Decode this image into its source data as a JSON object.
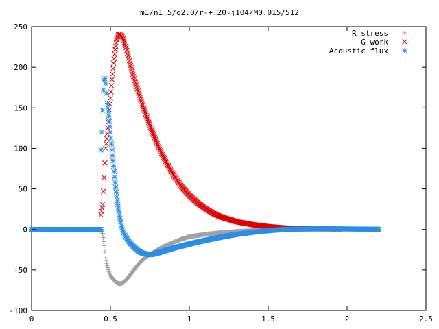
{
  "chart_data": {
    "type": "scatter",
    "title": "m1/n1.5/q2.0/r-+.20-j104/M0.015/512",
    "xlabel": "",
    "ylabel": "",
    "xlim": [
      0,
      2.5
    ],
    "ylim": [
      -100,
      250
    ],
    "x_ticks": [
      0,
      0.5,
      1,
      1.5,
      2,
      2.5
    ],
    "x_tick_labels": [
      "0",
      "0.5",
      "1",
      "1.5",
      "2",
      "2.5"
    ],
    "y_ticks": [
      -100,
      -50,
      0,
      50,
      100,
      150,
      200,
      250
    ],
    "y_tick_labels": [
      "-100",
      "-50",
      "0",
      "50",
      "100",
      "150",
      "200",
      "250"
    ],
    "grid": false,
    "legend_position": "top-right",
    "series": [
      {
        "name": "R stress",
        "marker": "plus",
        "color": "#a0a0a0",
        "points": [
          [
            0.0,
            0
          ],
          [
            0.1,
            0
          ],
          [
            0.2,
            0
          ],
          [
            0.3,
            0
          ],
          [
            0.4,
            0
          ],
          [
            0.44,
            0
          ],
          [
            0.45,
            -5
          ],
          [
            0.46,
            -20
          ],
          [
            0.47,
            -35
          ],
          [
            0.48,
            -45
          ],
          [
            0.49,
            -52
          ],
          [
            0.5,
            -57
          ],
          [
            0.52,
            -62
          ],
          [
            0.54,
            -66
          ],
          [
            0.56,
            -67
          ],
          [
            0.58,
            -66
          ],
          [
            0.6,
            -62
          ],
          [
            0.63,
            -55
          ],
          [
            0.66,
            -47
          ],
          [
            0.7,
            -38
          ],
          [
            0.75,
            -31
          ],
          [
            0.8,
            -25
          ],
          [
            0.85,
            -20
          ],
          [
            0.9,
            -16
          ],
          [
            0.95,
            -12
          ],
          [
            1.0,
            -9
          ],
          [
            1.1,
            -6
          ],
          [
            1.2,
            -4
          ],
          [
            1.3,
            -2.5
          ],
          [
            1.4,
            -1.5
          ],
          [
            1.5,
            -0.5
          ],
          [
            1.6,
            0
          ],
          [
            1.7,
            0.3
          ],
          [
            1.8,
            0.4
          ],
          [
            1.9,
            0.5
          ],
          [
            1.95,
            0.5
          ]
        ]
      },
      {
        "name": "G work",
        "marker": "cross",
        "color": "#e00000",
        "points": [
          [
            0.44,
            18
          ],
          [
            0.45,
            31
          ],
          [
            0.455,
            47
          ],
          [
            0.46,
            64
          ],
          [
            0.465,
            82
          ],
          [
            0.47,
            100
          ],
          [
            0.48,
            118
          ],
          [
            0.49,
            140
          ],
          [
            0.5,
            162
          ],
          [
            0.51,
            185
          ],
          [
            0.52,
            205
          ],
          [
            0.53,
            222
          ],
          [
            0.54,
            234
          ],
          [
            0.55,
            240
          ],
          [
            0.56,
            241
          ],
          [
            0.57,
            239
          ],
          [
            0.58,
            235
          ],
          [
            0.6,
            224
          ],
          [
            0.62,
            208
          ],
          [
            0.65,
            186
          ],
          [
            0.7,
            155
          ],
          [
            0.75,
            128
          ],
          [
            0.8,
            104
          ],
          [
            0.85,
            84
          ],
          [
            0.9,
            67
          ],
          [
            0.95,
            53
          ],
          [
            1.0,
            42
          ],
          [
            1.05,
            33
          ],
          [
            1.1,
            26
          ],
          [
            1.15,
            20
          ],
          [
            1.2,
            15.5
          ],
          [
            1.3,
            9.5
          ],
          [
            1.4,
            6
          ],
          [
            1.5,
            3.5
          ],
          [
            1.6,
            2
          ],
          [
            1.7,
            1.2
          ],
          [
            1.8,
            0.8
          ],
          [
            1.9,
            0.6
          ],
          [
            1.95,
            0.5
          ]
        ]
      },
      {
        "name": "Acoustic flux",
        "marker": "star",
        "color": "#2b8ee8",
        "points": [
          [
            0.0,
            0
          ],
          [
            0.1,
            0
          ],
          [
            0.2,
            0
          ],
          [
            0.3,
            0
          ],
          [
            0.4,
            0
          ],
          [
            0.44,
            0
          ],
          [
            0.44,
            98
          ],
          [
            0.445,
            120
          ],
          [
            0.45,
            147
          ],
          [
            0.455,
            172
          ],
          [
            0.46,
            184
          ],
          [
            0.465,
            186
          ],
          [
            0.47,
            180
          ],
          [
            0.475,
            168
          ],
          [
            0.48,
            155
          ],
          [
            0.49,
            140
          ],
          [
            0.5,
            120
          ],
          [
            0.51,
            98
          ],
          [
            0.52,
            78
          ],
          [
            0.53,
            58
          ],
          [
            0.54,
            40
          ],
          [
            0.55,
            26
          ],
          [
            0.56,
            14
          ],
          [
            0.57,
            5
          ],
          [
            0.58,
            -3
          ],
          [
            0.6,
            -10
          ],
          [
            0.62,
            -16
          ],
          [
            0.65,
            -22
          ],
          [
            0.68,
            -27
          ],
          [
            0.7,
            -29
          ],
          [
            0.72,
            -30
          ],
          [
            0.74,
            -31
          ],
          [
            0.76,
            -31
          ],
          [
            0.8,
            -29
          ],
          [
            0.85,
            -26
          ],
          [
            0.9,
            -23
          ],
          [
            1.0,
            -18
          ],
          [
            1.1,
            -13.5
          ],
          [
            1.2,
            -9.5
          ],
          [
            1.3,
            -6
          ],
          [
            1.4,
            -3.5
          ],
          [
            1.5,
            -1.5
          ],
          [
            1.6,
            0
          ],
          [
            1.7,
            0.5
          ],
          [
            1.8,
            0.8
          ],
          [
            1.9,
            0.8
          ],
          [
            2.0,
            0.6
          ],
          [
            2.1,
            0.4
          ],
          [
            2.2,
            0.3
          ]
        ]
      }
    ]
  }
}
